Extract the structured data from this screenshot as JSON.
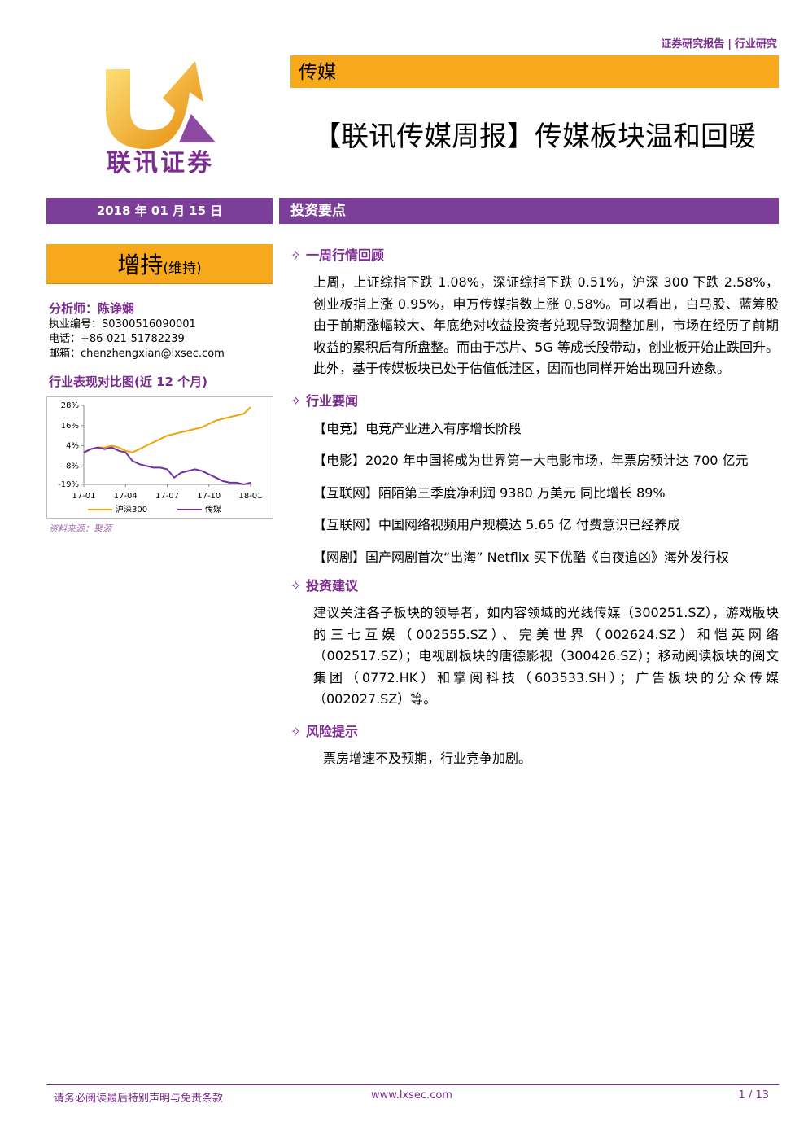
{
  "header": {
    "report_type": "证券研究报告",
    "separator": "|",
    "category": "行业研究"
  },
  "logo": {
    "text": "联讯证券"
  },
  "sector": "传媒",
  "title": "【联讯传媒周报】传媒板块温和回暖",
  "date": "2018 年 01 月 15 日",
  "rating": {
    "main": "增持",
    "note": "(维持)"
  },
  "analyst": {
    "name": "分析师：陈诤娴",
    "license": "执业编号：S0300516090001",
    "phone": "电话：+86-021-51782239",
    "email": "邮箱：chenzhengxian@lxsec.com"
  },
  "chart_data": {
    "type": "line",
    "title": "行业表现对比图(近 12 个月)",
    "categories": [
      "17-01",
      null,
      null,
      null,
      null,
      null,
      "17-04",
      null,
      null,
      null,
      null,
      null,
      "17-07",
      null,
      null,
      null,
      null,
      null,
      "17-10",
      null,
      null,
      null,
      null,
      null,
      "18-01"
    ],
    "series": [
      {
        "name": "沪深300",
        "color": "#f0a30a",
        "values": [
          0,
          2,
          3,
          3,
          4,
          3,
          1,
          0,
          2,
          4,
          6,
          8,
          10,
          11,
          12,
          13,
          14,
          15,
          17,
          19,
          20,
          21,
          22,
          23,
          27
        ]
      },
      {
        "name": "传媒",
        "color": "#7030a0",
        "values": [
          0,
          2,
          3,
          2,
          3,
          1,
          0,
          -5,
          -7,
          -8,
          -9,
          -9,
          -10,
          -15,
          -12,
          -11,
          -10,
          -11,
          -13,
          -15,
          -17,
          -18,
          -18,
          -19,
          -18
        ]
      }
    ],
    "ylim": [
      -19,
      28
    ],
    "yticks": [
      {
        "value": 28,
        "label": "28%"
      },
      {
        "value": 16,
        "label": "16%"
      },
      {
        "value": 4,
        "label": "4%"
      },
      {
        "value": -8,
        "label": "-8%"
      },
      {
        "value": -19,
        "label": "-19%"
      }
    ],
    "legend": "bottom",
    "source": "资料来源：聚源"
  },
  "summary_heading": "投资要点",
  "sections": [
    {
      "heading": "✧ 一周行情回顾",
      "paragraphs": [
        "上周，上证综指下跌 1.08%，深证综指下跌 0.51%，沪深 300 下跌 2.58%，创业板指上涨 0.95%，申万传媒指数上涨 0.58%。可以看出，白马股、蓝筹股由于前期涨幅较大、年底绝对收益投资者兑现导致调整加剧，市场在经历了前期收益的累积后有所盘整。而由于芯片、5G 等成长股带动，创业板开始止跌回升。此外，基于传媒板块已处于估值低洼区，因而也同样开始出现回升迹象。"
      ]
    },
    {
      "heading": "✧ 行业要闻",
      "items": [
        "【电竞】电竞产业进入有序增长阶段",
        "【电影】2020 年中国将成为世界第一大电影市场，年票房预计达 700 亿元",
        "【互联网】陌陌第三季度净利润 9380 万美元 同比增长 89%",
        "【互联网】中国网络视频用户规模达 5.65 亿 付费意识已经养成",
        "【网剧】国产网剧首次“出海” Netflix 买下优酷《白夜追凶》海外发行权"
      ]
    },
    {
      "heading": "✧ 投资建议",
      "paragraphs": [
        "建议关注各子板块的领导者，如内容领域的光线传媒（300251.SZ），游戏版块的三七互娱（002555.SZ）、完美世界（002624.SZ）和恺英网络（002517.SZ）；电视剧板块的唐德影视（300426.SZ）；移动阅读板块的阅文集团（0772.HK）和掌阅科技（603533.SH）；广告板块的分众传媒（002027.SZ）等。"
      ]
    },
    {
      "heading": "✧ 风险提示",
      "paragraphs": [
        "票房增速不及预期，行业竞争加剧。"
      ]
    }
  ],
  "footer": {
    "disclaimer": "请务必阅读最后特别声明与免责条款",
    "url": "www.lxsec.com",
    "page": "1 / 13"
  }
}
